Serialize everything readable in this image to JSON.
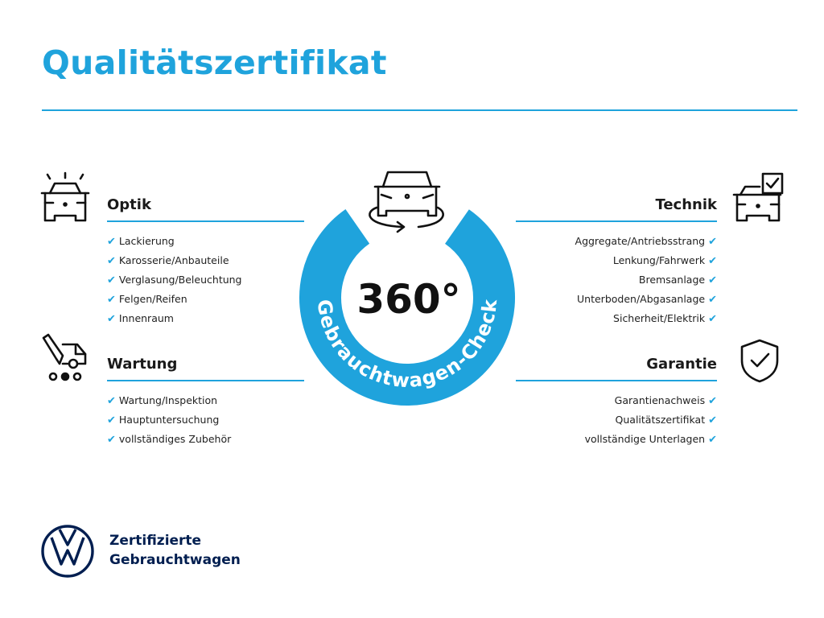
{
  "title": "Qualitätszertifikat",
  "colors": {
    "accent": "#1fa3dc",
    "brand": "#001e50"
  },
  "center": {
    "label": "360°",
    "arc_text": "Gebrauchtwagen-Check",
    "icon": "car-rotate-icon"
  },
  "sections": {
    "optik": {
      "heading": "Optik",
      "icon": "car-lights-icon",
      "items": [
        "Lackierung",
        "Karosserie/Anbauteile",
        "Verglasung/Beleuchtung",
        "Felgen/Reifen",
        "Innenraum"
      ]
    },
    "wartung": {
      "heading": "Wartung",
      "icon": "service-van-icon",
      "items": [
        "Wartung/Inspektion",
        "Hauptuntersuchung",
        "vollständiges Zubehör"
      ]
    },
    "technik": {
      "heading": "Technik",
      "icon": "car-checkbox-icon",
      "items": [
        "Aggregate/Antriebsstrang",
        "Lenkung/Fahrwerk",
        "Bremsanlage",
        "Unterboden/Abgasanlage",
        "Sicherheit/Elektrik"
      ]
    },
    "garantie": {
      "heading": "Garantie",
      "icon": "shield-check-icon",
      "items": [
        "Garantienachweis",
        "Qualitätszertifikat",
        "vollständige Unterlagen"
      ]
    }
  },
  "check_glyph": "✔",
  "footer": {
    "line1": "Zertifizierte",
    "line2": "Gebrauchtwagen",
    "logo": "vw-logo"
  }
}
